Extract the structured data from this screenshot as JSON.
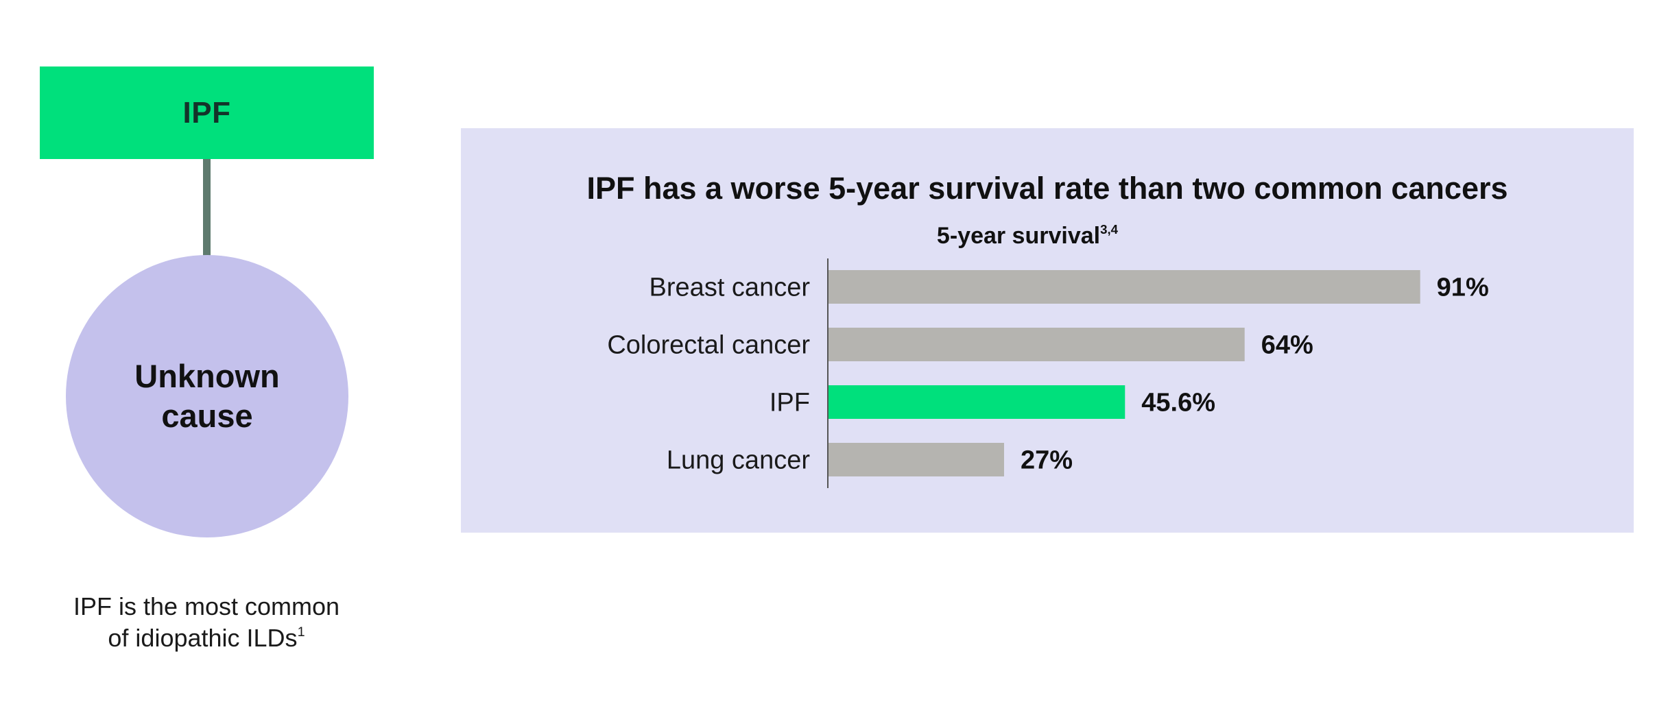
{
  "diagram": {
    "box_label": "IPF",
    "circle_label": "Unknown cause",
    "caption_line1": "IPF is the most common",
    "caption_line2": "of idiopathic ILDs",
    "caption_sup": "1"
  },
  "colors": {
    "highlight": "#00e07c",
    "bar": "#b5b4b0",
    "panel": "#e0e0f5",
    "circle": "#c4c1ec",
    "connector": "#5e7a6e"
  },
  "chart_data": {
    "type": "bar",
    "orientation": "horizontal",
    "title": "IPF has a worse 5-year survival rate than two common cancers",
    "subtitle": "5-year survival",
    "subtitle_sup": "3,4",
    "categories": [
      "Breast cancer",
      "Colorectal cancer",
      "IPF",
      "Lung cancer"
    ],
    "values": [
      91,
      64,
      45.6,
      27
    ],
    "value_labels": [
      "91%",
      "64%",
      "45.6%",
      "27%"
    ],
    "highlight_index": 2,
    "unit": "%",
    "xlim": [
      0,
      100
    ],
    "grid": false,
    "legend": "none"
  }
}
